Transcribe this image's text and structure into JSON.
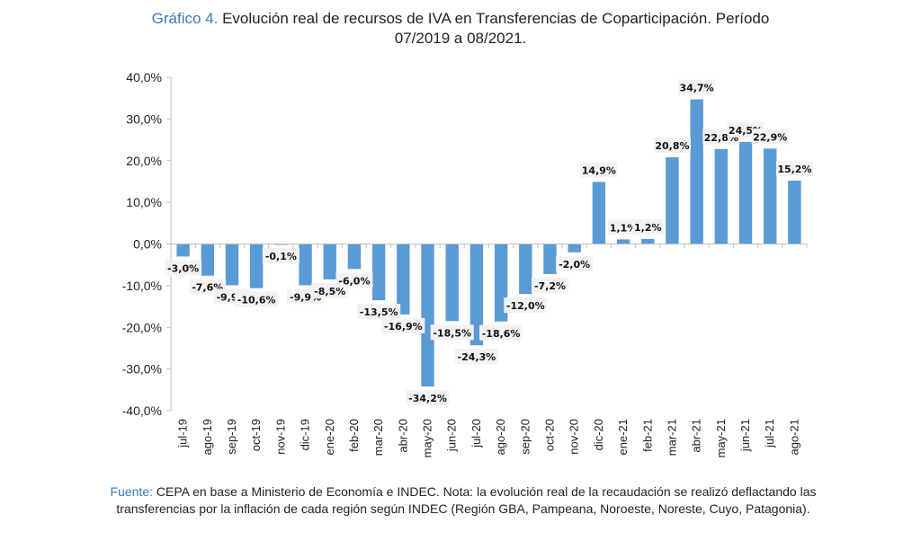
{
  "title": {
    "lead": "Gráfico 4.",
    "text": " Evolución real de recursos de IVA en Transferencias de Coparticipación. Período",
    "line2": "07/2019 a 08/2021."
  },
  "source": {
    "lead": "Fuente:",
    "text": " CEPA en base a Ministerio de Economía e INDEC. Nota: la evolución real de la recaudación se realizó deflactando las transferencias por la inflación de cada región según INDEC (Región GBA, Pampeana, Noroeste, Noreste, Cuyo, Patagonia)."
  },
  "colors": {
    "bar": "#5b9bd5",
    "accent": "#3a78b8",
    "label_bg": "#f2f2f2"
  },
  "chart_data": {
    "type": "bar",
    "title": "Evolución real de recursos de IVA en Transferencias de Coparticipación. Período 07/2019 a 08/2021.",
    "xlabel": "",
    "ylabel": "",
    "ylim": [
      -40,
      40
    ],
    "yticks": [
      40,
      30,
      20,
      10,
      0,
      -10,
      -20,
      -30,
      -40
    ],
    "ytick_labels": [
      "40,0%",
      "30,0%",
      "20,0%",
      "10,0%",
      "0,0%",
      "-10,0%",
      "-20,0%",
      "-30,0%",
      "-40,0%"
    ],
    "grid": false,
    "categories": [
      "jul-19",
      "ago-19",
      "sep-19",
      "oct-19",
      "nov-19",
      "dic-19",
      "ene-20",
      "feb-20",
      "mar-20",
      "abr-20",
      "may-20",
      "jun-20",
      "jul-20",
      "ago-20",
      "sep-20",
      "oct-20",
      "nov-20",
      "dic-20",
      "ene-21",
      "feb-21",
      "mar-21",
      "abr-21",
      "may-21",
      "jun-21",
      "jul-21",
      "ago-21"
    ],
    "values": [
      -3.0,
      -7.6,
      -9.9,
      -10.6,
      -0.1,
      -9.9,
      -8.5,
      -6.0,
      -13.5,
      -16.9,
      -34.2,
      -18.5,
      -24.3,
      -18.6,
      -12.0,
      -7.2,
      -2.0,
      14.9,
      1.1,
      1.2,
      20.8,
      34.7,
      22.8,
      24.5,
      22.9,
      15.2
    ],
    "data_labels": [
      "-3,0%",
      "-7,6%",
      "-9,9%",
      "-10,6%",
      "-0,1%",
      "-9,9%",
      "-8,5%",
      "-6,0%",
      "-13,5%",
      "-16,9%",
      "-34,2%",
      "-18,5%",
      "-24,3%",
      "-18,6%",
      "-12,0%",
      "-7,2%",
      "-2,0%",
      "14,9%",
      "1,1%",
      "1,2%",
      "20,8%",
      "34,7%",
      "22,8%",
      "24,5%",
      "22,9%",
      "15,2%"
    ]
  }
}
